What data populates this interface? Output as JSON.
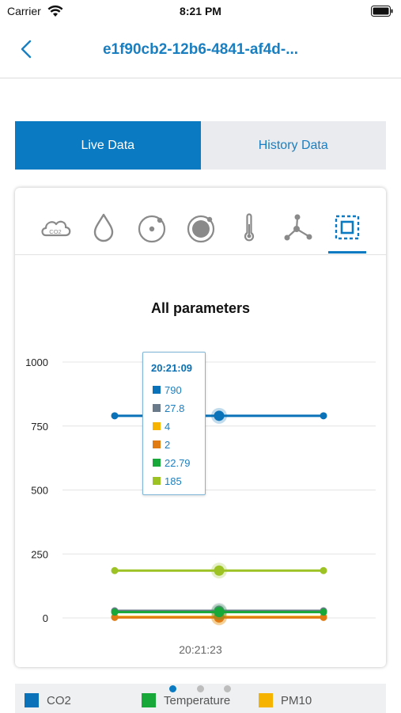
{
  "status_bar": {
    "carrier": "Carrier",
    "time": "8:21 PM"
  },
  "nav": {
    "title": "e1f90cb2-12b6-4841-af4d-..."
  },
  "tabs": [
    {
      "label": "Live Data",
      "active": true
    },
    {
      "label": "History Data",
      "active": false
    }
  ],
  "parameter_icons": [
    {
      "icon": "co2-cloud-icon",
      "label": "CO2"
    },
    {
      "icon": "humidity-drop-icon"
    },
    {
      "icon": "pm-small-particle-icon"
    },
    {
      "icon": "pm-large-particle-icon"
    },
    {
      "icon": "thermometer-icon"
    },
    {
      "icon": "molecule-icon"
    },
    {
      "icon": "all-parameters-icon",
      "active": true
    }
  ],
  "colors": {
    "accent": "#0a7bc2",
    "co2": "#0a72b8",
    "humidity": "#6b7a8a",
    "pm10": "#f6b400",
    "pm25": "#e07a12",
    "temperature": "#18a83a",
    "tvoc": "#9cc224"
  },
  "tooltip": {
    "time": "20:21:09",
    "values": [
      "790",
      "27.8",
      "4",
      "2",
      "22.79",
      "185"
    ]
  },
  "chart_data": {
    "type": "line",
    "title": "All parameters",
    "x": [
      "",
      "20:21:09",
      ""
    ],
    "x_tick_label": "20:21:23",
    "y_ticks": [
      0,
      250,
      500,
      750,
      1000
    ],
    "ylim": [
      0,
      1000
    ],
    "grid": true,
    "series": [
      {
        "name": "CO2",
        "color": "#0a72b8",
        "values": [
          790,
          790,
          790
        ]
      },
      {
        "color": "#6b7a8a",
        "values": [
          27.8,
          27.8,
          27.8
        ]
      },
      {
        "name": "PM10",
        "color": "#f6b400",
        "values": [
          4,
          4,
          4
        ]
      },
      {
        "color": "#e07a12",
        "values": [
          2,
          2,
          2
        ]
      },
      {
        "name": "Temperature",
        "color": "#18a83a",
        "values": [
          22.79,
          22.79,
          22.79
        ]
      },
      {
        "color": "#9cc224",
        "values": [
          185,
          185,
          185
        ]
      }
    ]
  },
  "legend": [
    {
      "label": "CO2",
      "color": "#0a72b8"
    },
    {
      "label": "Temperature",
      "color": "#18a83a"
    },
    {
      "label": "PM10",
      "color": "#f6b400"
    }
  ],
  "pagination": {
    "pages": 3,
    "current": 1
  }
}
